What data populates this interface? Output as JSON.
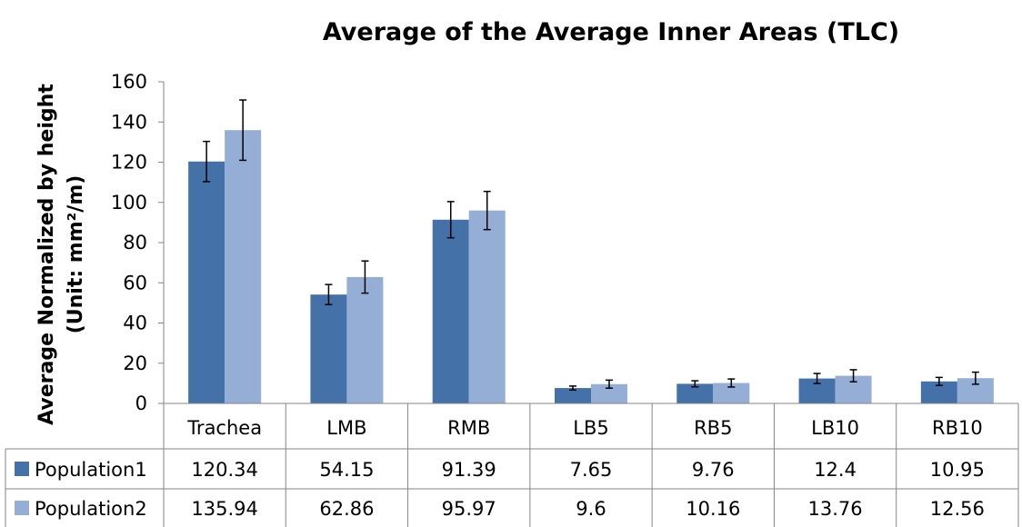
{
  "chart_data": {
    "type": "bar",
    "title": "Average of the Average Inner Areas (TLC)",
    "ylabel_line1": "Average Normalized by height",
    "ylabel_line2": "(Unit: mm²/m)",
    "xlabel": "",
    "ylim": [
      0,
      160
    ],
    "yticks": [
      "0",
      "20",
      "40",
      "60",
      "80",
      "100",
      "120",
      "140",
      "160"
    ],
    "grid": false,
    "legend": "data-table",
    "categories": [
      "Trachea",
      "LMB",
      "RMB",
      "LB5",
      "RB5",
      "LB10",
      "RB10"
    ],
    "series": [
      {
        "name": "Population1",
        "color": "#4472A8",
        "values": [
          120.34,
          54.15,
          91.39,
          7.65,
          9.76,
          12.4,
          10.95
        ],
        "error": [
          10,
          5,
          9,
          1,
          1.5,
          2.5,
          2
        ],
        "labels": [
          "120.34",
          "54.15",
          "91.39",
          "7.65",
          "9.76",
          "12.4",
          "10.95"
        ]
      },
      {
        "name": "Population2",
        "color": "#95AED6",
        "values": [
          135.94,
          62.86,
          95.97,
          9.6,
          10.16,
          13.76,
          12.56
        ],
        "error": [
          15,
          8,
          9.5,
          2,
          2,
          3,
          3
        ],
        "labels": [
          "135.94",
          "62.86",
          "95.97",
          "9.6",
          "10.16",
          "13.76",
          "12.56"
        ]
      }
    ]
  }
}
